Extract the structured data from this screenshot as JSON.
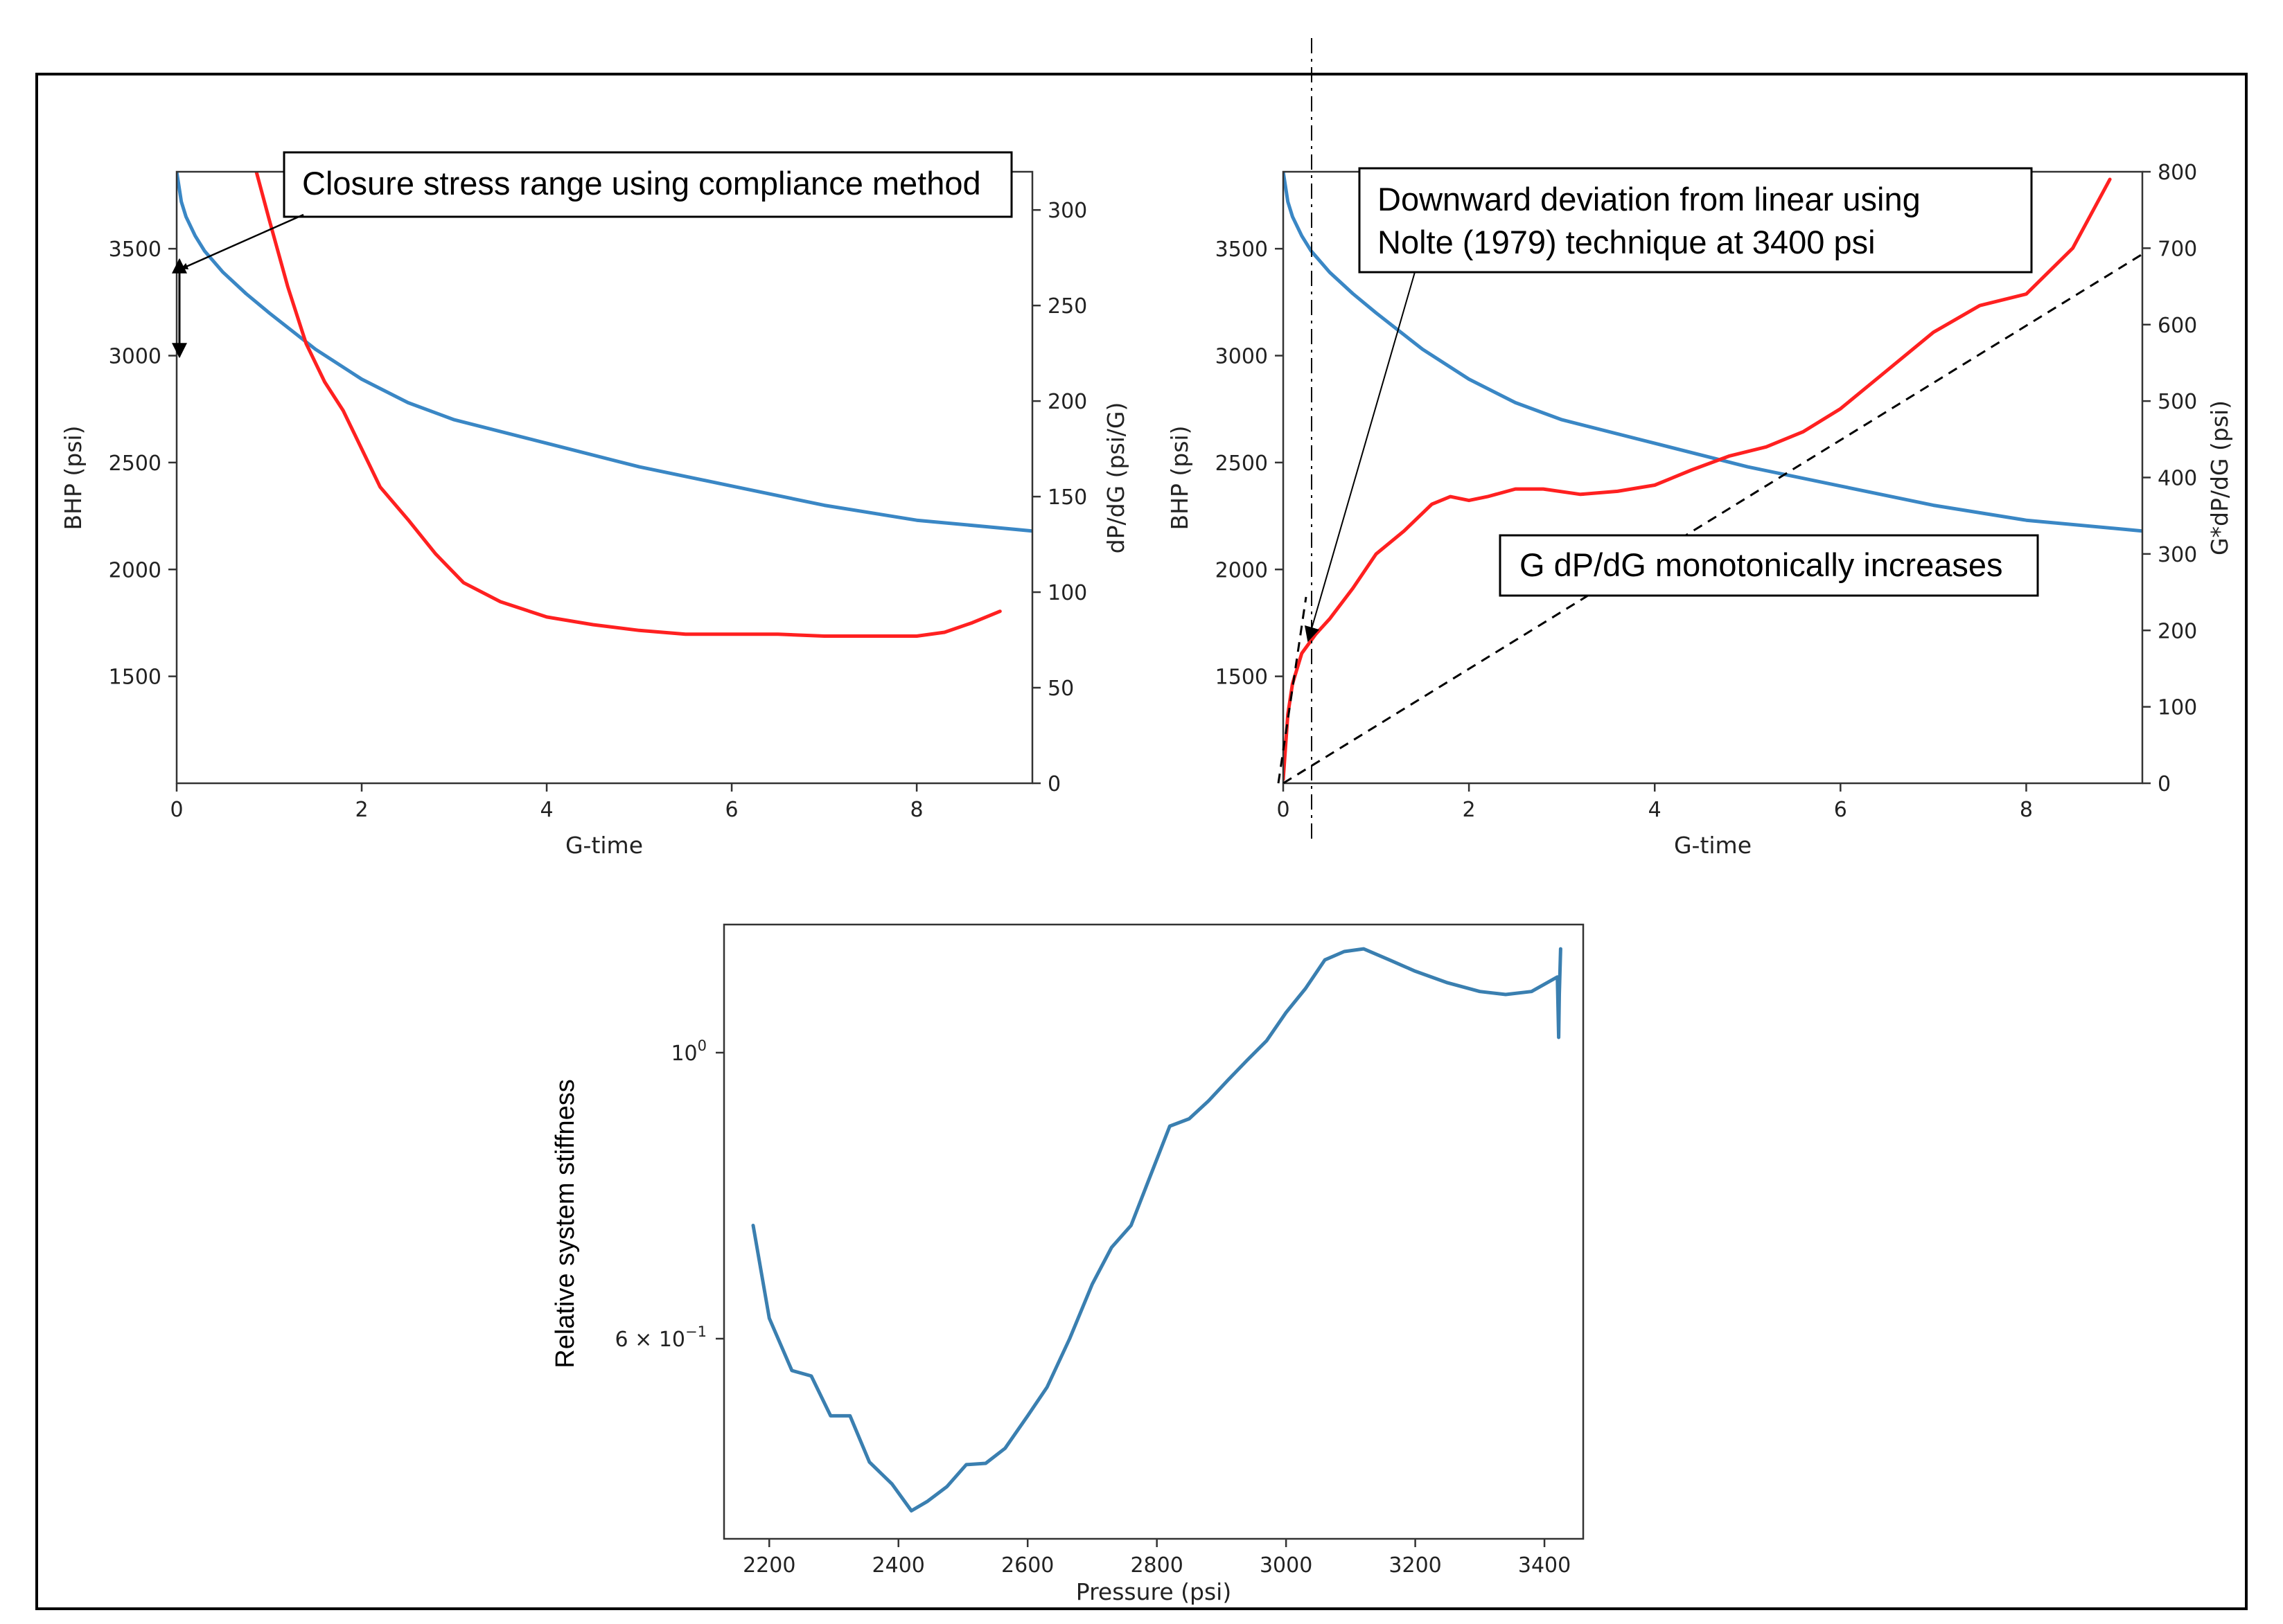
{
  "colors": {
    "blue": "#3a87c5",
    "red": "#ff2020",
    "bottom_line": "#3a7fb0",
    "frame": "#000000"
  },
  "chart_data": [
    {
      "type": "line",
      "xlabel": "G-time",
      "ylabel": "BHP (psi)",
      "y2label": "dP/dG (psi/G)",
      "xlim": [
        0,
        9.25
      ],
      "ylim": [
        1000,
        3860
      ],
      "y2lim": [
        0,
        320
      ],
      "xticks": [
        "0",
        "2",
        "4",
        "6",
        "8"
      ],
      "yticks": [
        "1500",
        "2000",
        "2500",
        "3000",
        "3500"
      ],
      "y2ticks": [
        "0",
        "50",
        "100",
        "150",
        "200",
        "250",
        "300"
      ],
      "series": [
        {
          "name": "BHP",
          "axis": "left",
          "x": [
            0,
            0.05,
            0.1,
            0.2,
            0.3,
            0.5,
            0.75,
            1.0,
            1.5,
            2.0,
            2.5,
            3.0,
            4.0,
            5.0,
            6.0,
            7.0,
            8.0,
            9.25
          ],
          "y": [
            3860,
            3720,
            3650,
            3560,
            3490,
            3390,
            3290,
            3200,
            3030,
            2890,
            2780,
            2700,
            2590,
            2480,
            2390,
            2300,
            2230,
            2180
          ]
        },
        {
          "name": "dP/dG",
          "axis": "right",
          "x": [
            0.85,
            1.0,
            1.2,
            1.4,
            1.6,
            1.8,
            2.0,
            2.2,
            2.5,
            2.8,
            3.1,
            3.5,
            4.0,
            4.5,
            5.0,
            5.5,
            6.0,
            6.5,
            7.0,
            7.5,
            8.0,
            8.3,
            8.6,
            8.9
          ],
          "y": [
            322,
            295,
            260,
            230,
            210,
            195,
            175,
            155,
            138,
            120,
            105,
            95,
            87,
            83,
            80,
            78,
            78,
            78,
            77,
            77,
            77,
            79,
            84,
            90
          ]
        }
      ],
      "annotations": [
        "Closure stress range using compliance method"
      ]
    },
    {
      "type": "line",
      "xlabel": "G-time",
      "ylabel": "BHP (psi)",
      "y2label": "G*dP/dG (psi)",
      "xlim": [
        0,
        9.25
      ],
      "ylim": [
        1000,
        3860
      ],
      "y2lim": [
        0,
        800
      ],
      "xticks": [
        "0",
        "2",
        "4",
        "6",
        "8"
      ],
      "yticks": [
        "1500",
        "2000",
        "2500",
        "3000",
        "3500"
      ],
      "y2ticks": [
        "0",
        "100",
        "200",
        "300",
        "400",
        "500",
        "600",
        "700",
        "800"
      ],
      "series": [
        {
          "name": "BHP",
          "axis": "left",
          "x": [
            0,
            0.05,
            0.1,
            0.2,
            0.3,
            0.5,
            0.75,
            1.0,
            1.5,
            2.0,
            2.5,
            3.0,
            4.0,
            5.0,
            6.0,
            7.0,
            8.0,
            9.25
          ],
          "y": [
            3860,
            3720,
            3650,
            3560,
            3490,
            3390,
            3290,
            3200,
            3030,
            2890,
            2780,
            2700,
            2590,
            2480,
            2390,
            2300,
            2230,
            2180
          ]
        },
        {
          "name": "G*dP/dG",
          "axis": "right",
          "x": [
            0,
            0.05,
            0.1,
            0.2,
            0.35,
            0.5,
            0.75,
            1.0,
            1.3,
            1.6,
            1.8,
            2.0,
            2.2,
            2.5,
            2.8,
            3.2,
            3.6,
            4.0,
            4.4,
            4.8,
            5.2,
            5.6,
            6.0,
            6.5,
            7.0,
            7.5,
            8.0,
            8.5,
            8.9
          ],
          "y": [
            5,
            90,
            130,
            170,
            195,
            215,
            255,
            300,
            330,
            365,
            375,
            370,
            375,
            385,
            385,
            378,
            382,
            390,
            410,
            428,
            440,
            460,
            490,
            540,
            590,
            625,
            640,
            700,
            790
          ]
        }
      ],
      "annotations": [
        "Downward deviation from linear using",
        "Nolte (1979) technique at 3400 psi",
        "G dP/dG monotonically increases"
      ]
    },
    {
      "type": "line",
      "xlabel": "Pressure (psi)",
      "ylabel": "Relative system  stiffness",
      "yscale": "log",
      "xlim": [
        2130,
        3460
      ],
      "ylim": [
        0.43,
        1.165
      ],
      "xticks": [
        "2200",
        "2400",
        "2600",
        "2800",
        "3000",
        "3200",
        "3400"
      ],
      "ytick_labels": {
        "one": "10",
        "one_exp": "0",
        "six_a": "6 × 10",
        "six_exp": "−1"
      },
      "series": [
        {
          "name": "stiffness",
          "x": [
            2175,
            2200,
            2235,
            2265,
            2295,
            2325,
            2355,
            2390,
            2420,
            2445,
            2475,
            2505,
            2535,
            2565,
            2600,
            2630,
            2665,
            2700,
            2730,
            2760,
            2790,
            2820,
            2850,
            2880,
            2910,
            2940,
            2970,
            3000,
            3030,
            3060,
            3090,
            3120,
            3160,
            3200,
            3250,
            3300,
            3340,
            3380,
            3420,
            3422,
            3423,
            3425
          ],
          "y": [
            0.715,
            0.615,
            0.565,
            0.56,
            0.525,
            0.525,
            0.487,
            0.47,
            0.45,
            0.457,
            0.468,
            0.485,
            0.486,
            0.498,
            0.525,
            0.55,
            0.595,
            0.65,
            0.69,
            0.715,
            0.775,
            0.84,
            0.85,
            0.875,
            0.905,
            0.935,
            0.965,
            1.01,
            1.05,
            1.1,
            1.115,
            1.12,
            1.1,
            1.08,
            1.06,
            1.045,
            1.04,
            1.045,
            1.07,
            0.97,
            1.04,
            1.12
          ]
        }
      ]
    }
  ]
}
